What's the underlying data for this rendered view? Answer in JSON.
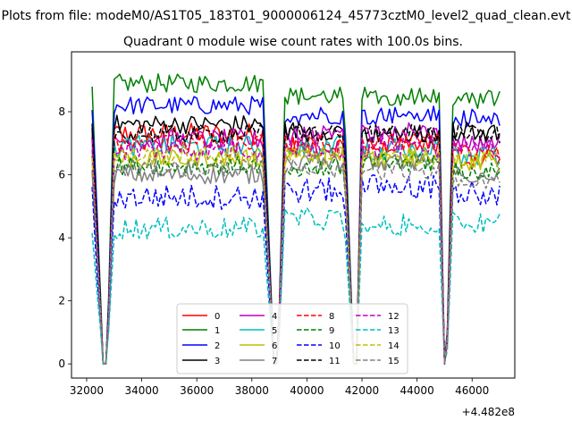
{
  "figure": {
    "suptitle": "Plots from file: modeM0/AS1T05_183T01_9000006124_45773cztM0_level2_quad_clean.evt",
    "title": "Quadrant 0 module wise count rates with 100.0s bins.",
    "offset_text": "+4.482e8"
  },
  "chart_data": {
    "type": "line",
    "title": "Quadrant 0 module wise count rates with 100.0s bins.",
    "xlabel": "",
    "ylabel": "",
    "x_offset": 448200000,
    "xlim": [
      31450,
      47550
    ],
    "ylim": [
      -0.45,
      9.9
    ],
    "xticks": [
      32000,
      34000,
      36000,
      38000,
      40000,
      42000,
      44000,
      46000
    ],
    "yticks": [
      0,
      2,
      4,
      6,
      8
    ],
    "grid": false,
    "legend_position": "lower center",
    "legend_columns": 4,
    "segments": [
      [
        32200,
        32600,
        33000,
        38400
      ],
      [
        38400,
        38800,
        39200,
        41350
      ],
      [
        41350,
        41700,
        42000,
        44850
      ],
      [
        44850,
        44950,
        45300,
        47000
      ]
    ],
    "series": [
      {
        "name": "0",
        "color": "#ff0000",
        "dash": "solid",
        "levels": [
          7.3,
          6.9,
          6.9,
          6.5
        ],
        "noise": 0.35
      },
      {
        "name": "1",
        "color": "#008000",
        "dash": "solid",
        "levels": [
          8.9,
          8.5,
          8.5,
          8.4
        ],
        "noise": 0.3
      },
      {
        "name": "2",
        "color": "#0000ff",
        "dash": "solid",
        "levels": [
          8.2,
          7.9,
          7.9,
          7.8
        ],
        "noise": 0.3
      },
      {
        "name": "3",
        "color": "#000000",
        "dash": "solid",
        "levels": [
          7.6,
          7.4,
          7.3,
          7.4
        ],
        "noise": 0.3
      },
      {
        "name": "4",
        "color": "#bf00bf",
        "dash": "solid",
        "levels": [
          7.1,
          7.2,
          7.3,
          7.0
        ],
        "noise": 0.35
      },
      {
        "name": "5",
        "color": "#00bfbf",
        "dash": "solid",
        "levels": [
          6.9,
          6.9,
          6.8,
          6.6
        ],
        "noise": 0.35
      },
      {
        "name": "6",
        "color": "#bfbf00",
        "dash": "solid",
        "levels": [
          6.5,
          6.6,
          6.5,
          6.4
        ],
        "noise": 0.3
      },
      {
        "name": "7",
        "color": "#808080",
        "dash": "solid",
        "levels": [
          6.0,
          6.4,
          6.4,
          6.0
        ],
        "noise": 0.3
      },
      {
        "name": "8",
        "color": "#ff0000",
        "dash": "dashed",
        "levels": [
          7.0,
          7.0,
          7.0,
          6.7
        ],
        "noise": 0.3
      },
      {
        "name": "9",
        "color": "#008000",
        "dash": "dashed",
        "levels": [
          6.3,
          6.2,
          6.4,
          6.1
        ],
        "noise": 0.3
      },
      {
        "name": "10",
        "color": "#0000ff",
        "dash": "dashed",
        "levels": [
          5.3,
          5.5,
          5.6,
          5.4
        ],
        "noise": 0.4
      },
      {
        "name": "11",
        "color": "#000000",
        "dash": "dashed",
        "levels": [
          7.3,
          7.3,
          7.3,
          7.3
        ],
        "noise": 0.3
      },
      {
        "name": "12",
        "color": "#bf00bf",
        "dash": "dashed",
        "levels": [
          6.8,
          6.9,
          6.9,
          6.8
        ],
        "noise": 0.35
      },
      {
        "name": "13",
        "color": "#00bfbf",
        "dash": "dashed",
        "levels": [
          4.3,
          4.6,
          4.4,
          4.5
        ],
        "noise": 0.35
      },
      {
        "name": "14",
        "color": "#bfbf00",
        "dash": "dashed",
        "levels": [
          6.6,
          6.6,
          6.6,
          6.5
        ],
        "noise": 0.3
      },
      {
        "name": "15",
        "color": "#808080",
        "dash": "dashed",
        "levels": [
          6.2,
          6.2,
          6.1,
          5.8
        ],
        "noise": 0.3
      }
    ]
  }
}
